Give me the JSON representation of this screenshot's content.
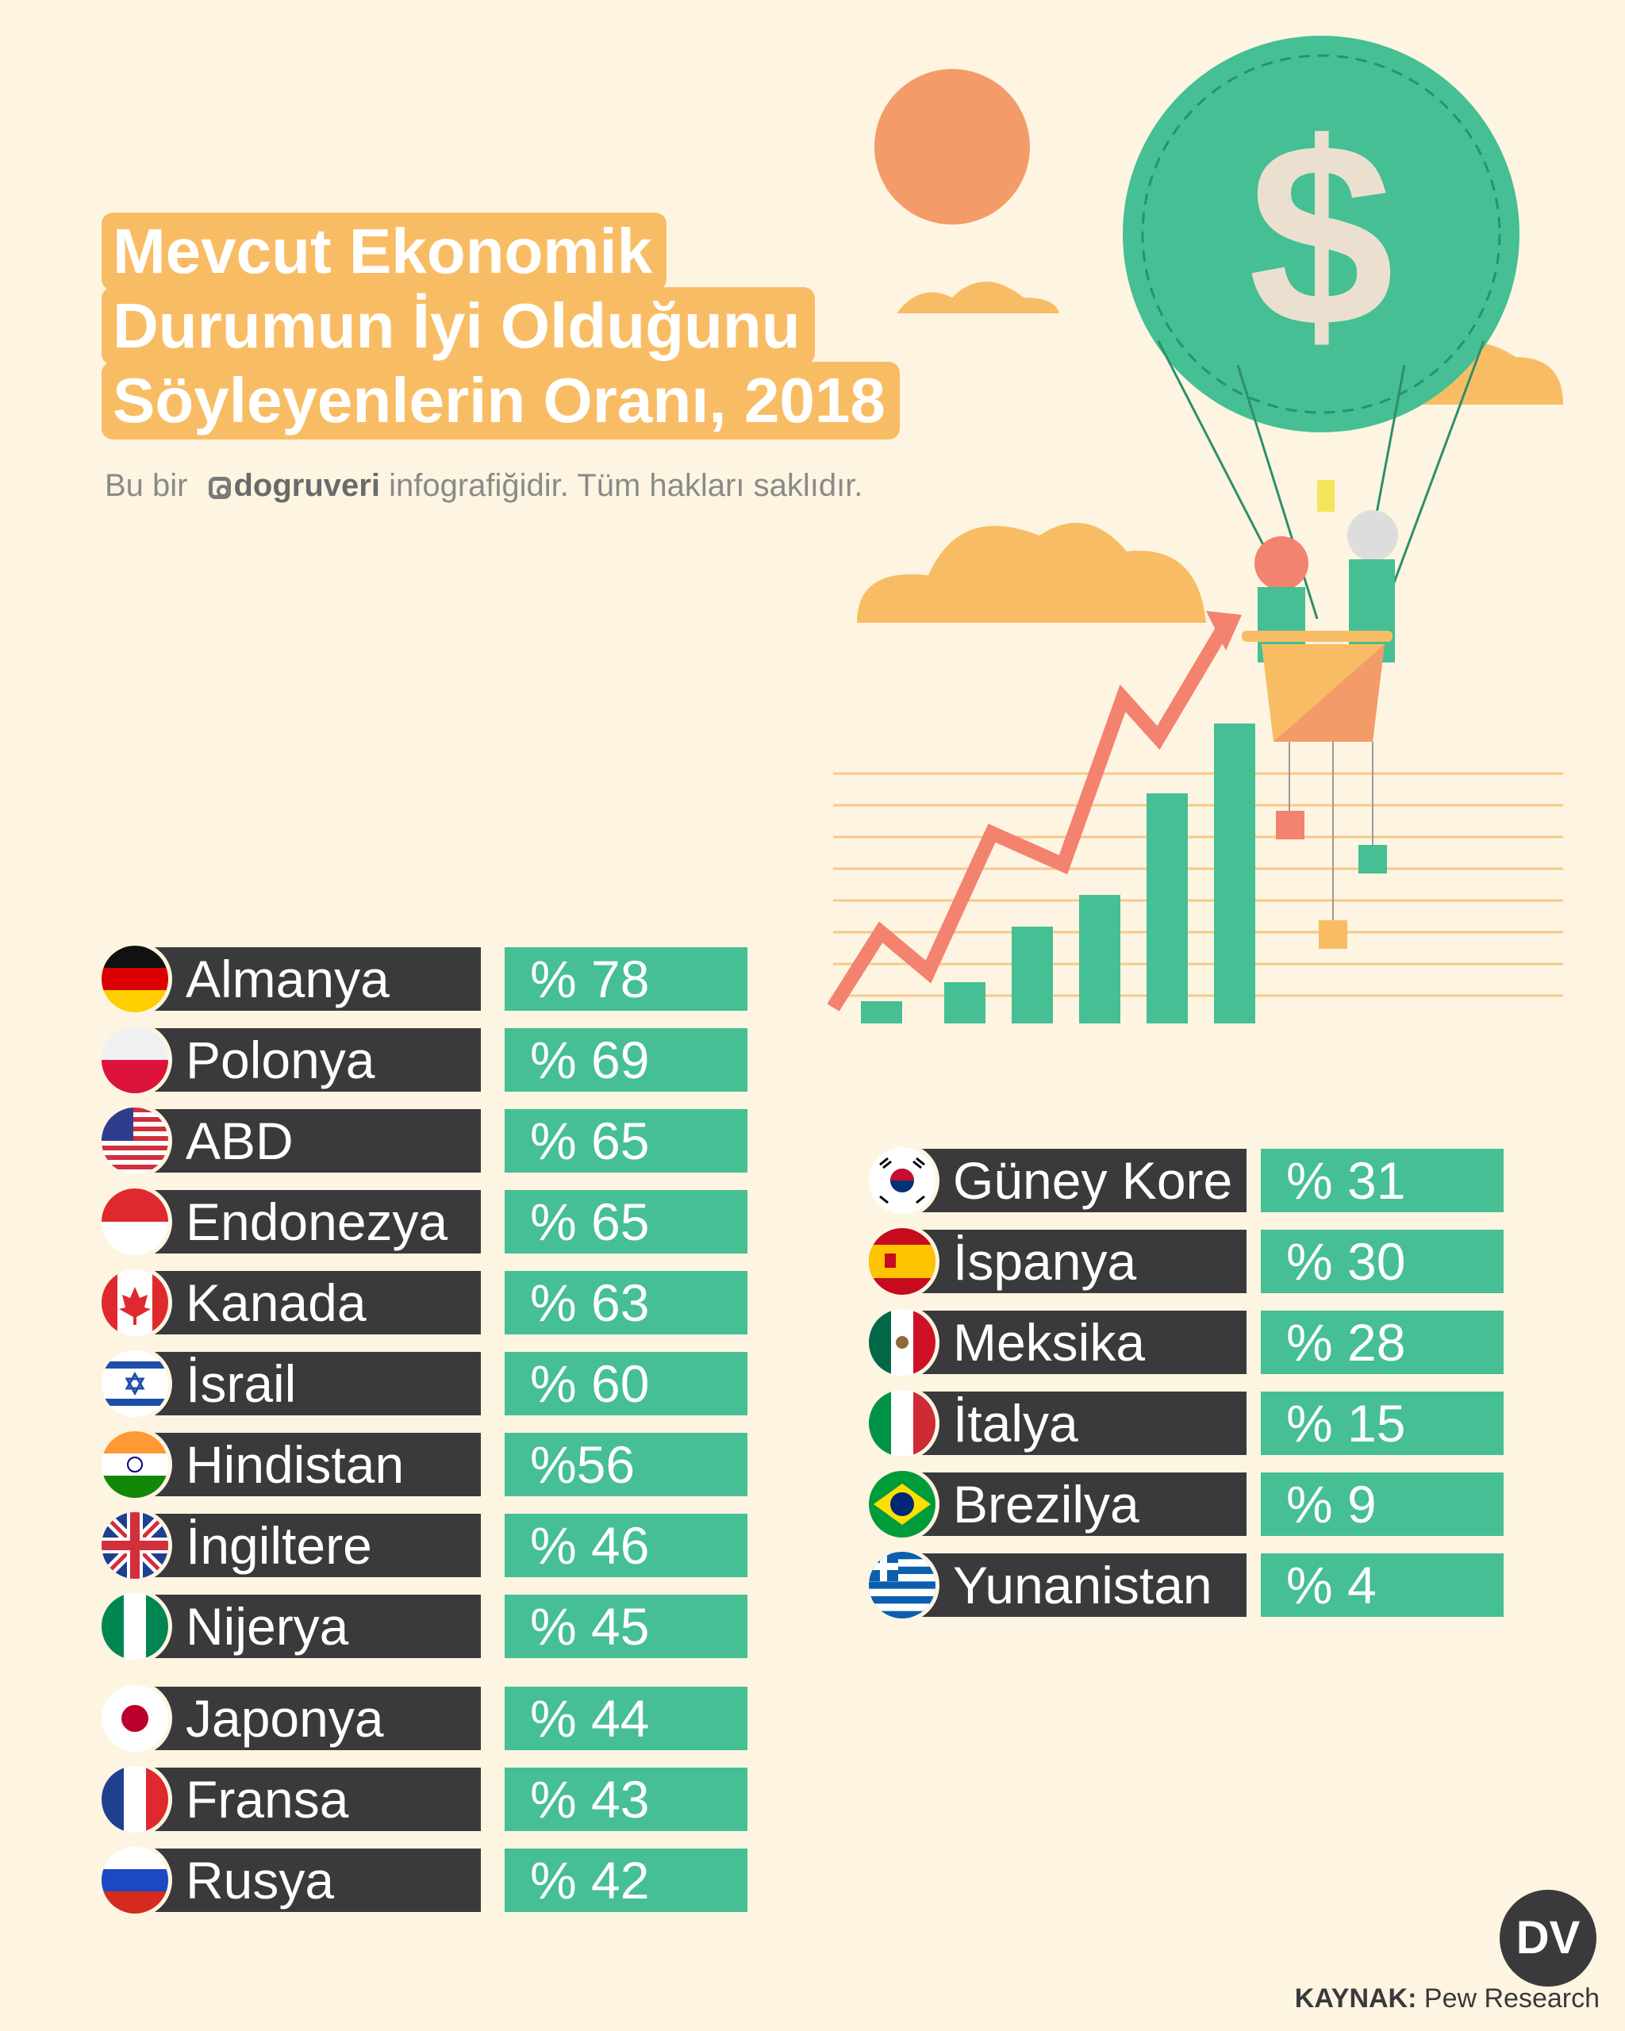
{
  "title": {
    "line1": "Mevcut Ekonomik",
    "line2": "Durumun İyi Olduğunu",
    "line3": "Söyleyenlerin Oranı, 2018"
  },
  "subtitle": {
    "prefix": "Bu bir",
    "brand": "dogruveri",
    "suffix": "infografiğidir. Tüm hakları saklıdır."
  },
  "source": {
    "label": "KAYNAK:",
    "value": "Pew Research"
  },
  "logo": {
    "text": "DV"
  },
  "colors": {
    "background": "#fdf5e1",
    "name_box": "#3a393c",
    "value_box": "#45bf93",
    "title_box": "#f8bd64"
  },
  "chart_data": {
    "type": "table",
    "columns": [
      [
        {
          "country": "Almanya",
          "label": "% 78",
          "value": 78,
          "flag": "germany-flag"
        },
        {
          "country": "Polonya",
          "label": "% 69",
          "value": 69,
          "flag": "poland-flag"
        },
        {
          "country": "ABD",
          "label": "% 65",
          "value": 65,
          "flag": "usa-flag"
        },
        {
          "country": "Endonezya",
          "label": "% 65",
          "value": 65,
          "flag": "indonesia-flag"
        },
        {
          "country": "Kanada",
          "label": "% 63",
          "value": 63,
          "flag": "canada-flag"
        },
        {
          "country": "İsrail",
          "label": "% 60",
          "value": 60,
          "flag": "israel-flag"
        },
        {
          "country": "Hindistan",
          "label": "%56",
          "value": 56,
          "flag": "india-flag"
        },
        {
          "country": "İngiltere",
          "label": "% 46",
          "value": 46,
          "flag": "uk-flag"
        },
        {
          "country": "Nijerya",
          "label": "% 45",
          "value": 45,
          "flag": "nigeria-flag"
        },
        {
          "country": "Japonya",
          "label": "% 44",
          "value": 44,
          "flag": "japan-flag"
        },
        {
          "country": "Fransa",
          "label": "% 43",
          "value": 43,
          "flag": "france-flag"
        },
        {
          "country": "Rusya",
          "label": "% 42",
          "value": 42,
          "flag": "russia-flag"
        }
      ],
      [
        {
          "country": "Güney Kore",
          "label": "% 31",
          "value": 31,
          "flag": "south-korea-flag"
        },
        {
          "country": "İspanya",
          "label": "% 30",
          "value": 30,
          "flag": "spain-flag"
        },
        {
          "country": "Meksika",
          "label": "% 28",
          "value": 28,
          "flag": "mexico-flag"
        },
        {
          "country": "İtalya",
          "label": "% 15",
          "value": 15,
          "flag": "italy-flag"
        },
        {
          "country": "Brezilya",
          "label": "% 9",
          "value": 9,
          "flag": "brazil-flag"
        },
        {
          "country": "Yunanistan",
          "label": "% 4",
          "value": 4,
          "flag": "greece-flag"
        }
      ]
    ]
  }
}
